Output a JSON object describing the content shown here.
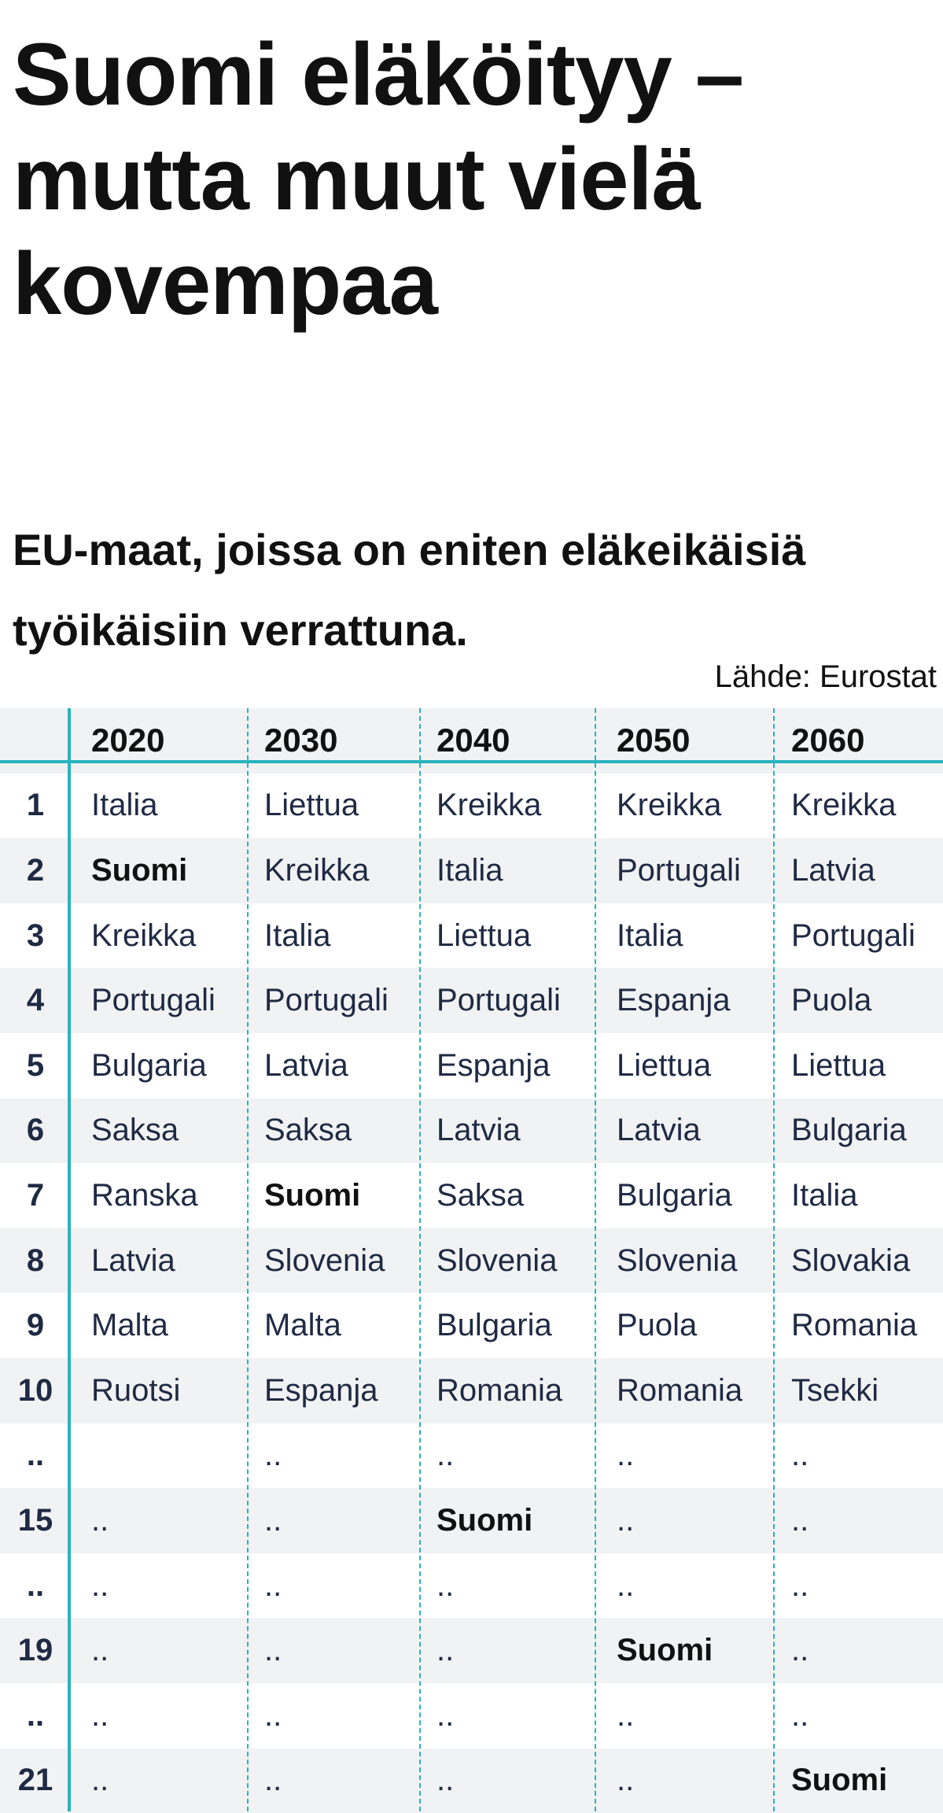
{
  "title": "Suomi eläköityy – mutta muut vielä kovempaa",
  "subtitle": "EU-maat, joissa on eniten eläkeikäisiä työikäisiin verrattuna.",
  "source": "Lähde: Eurostat",
  "highlight_value": "Suomi",
  "colors": {
    "accent": "#28b3bf",
    "text": "#1f2a44",
    "row_shade": "#f1f2f3"
  },
  "table": {
    "years": [
      "2020",
      "2030",
      "2040",
      "2050",
      "2060"
    ],
    "rows": [
      {
        "rank": "1",
        "cells": [
          "Italia",
          "Liettua",
          "Kreikka",
          "Kreikka",
          "Kreikka"
        ]
      },
      {
        "rank": "2",
        "cells": [
          "Suomi",
          "Kreikka",
          "Italia",
          "Portugali",
          "Latvia"
        ]
      },
      {
        "rank": "3",
        "cells": [
          "Kreikka",
          "Italia",
          "Liettua",
          "Italia",
          "Portugali"
        ]
      },
      {
        "rank": "4",
        "cells": [
          "Portugali",
          "Portugali",
          "Portugali",
          "Espanja",
          "Puola"
        ]
      },
      {
        "rank": "5",
        "cells": [
          "Bulgaria",
          "Latvia",
          "Espanja",
          "Liettua",
          "Liettua"
        ]
      },
      {
        "rank": "6",
        "cells": [
          "Saksa",
          "Saksa",
          "Latvia",
          "Latvia",
          "Bulgaria"
        ]
      },
      {
        "rank": "7",
        "cells": [
          "Ranska",
          "Suomi",
          "Saksa",
          "Bulgaria",
          "Italia"
        ]
      },
      {
        "rank": "8",
        "cells": [
          "Latvia",
          "Slovenia",
          "Slovenia",
          "Slovenia",
          "Slovakia"
        ]
      },
      {
        "rank": "9",
        "cells": [
          "Malta",
          "Malta",
          "Bulgaria",
          "Puola",
          "Romania"
        ]
      },
      {
        "rank": "10",
        "cells": [
          "Ruotsi",
          "Espanja",
          "Romania",
          "Romania",
          "Tsekki"
        ]
      },
      {
        "rank": "..",
        "cells": [
          "",
          "..",
          "..",
          "..",
          ".."
        ]
      },
      {
        "rank": "15",
        "cells": [
          "..",
          "..",
          "Suomi",
          "..",
          ".."
        ]
      },
      {
        "rank": "..",
        "cells": [
          "..",
          "..",
          "..",
          "..",
          ".."
        ]
      },
      {
        "rank": "19",
        "cells": [
          "..",
          "..",
          "..",
          "Suomi",
          ".."
        ]
      },
      {
        "rank": "..",
        "cells": [
          "..",
          "..",
          "..",
          "..",
          ".."
        ]
      },
      {
        "rank": "21",
        "cells": [
          "..",
          "..",
          "..",
          "..",
          "Suomi"
        ]
      }
    ]
  }
}
